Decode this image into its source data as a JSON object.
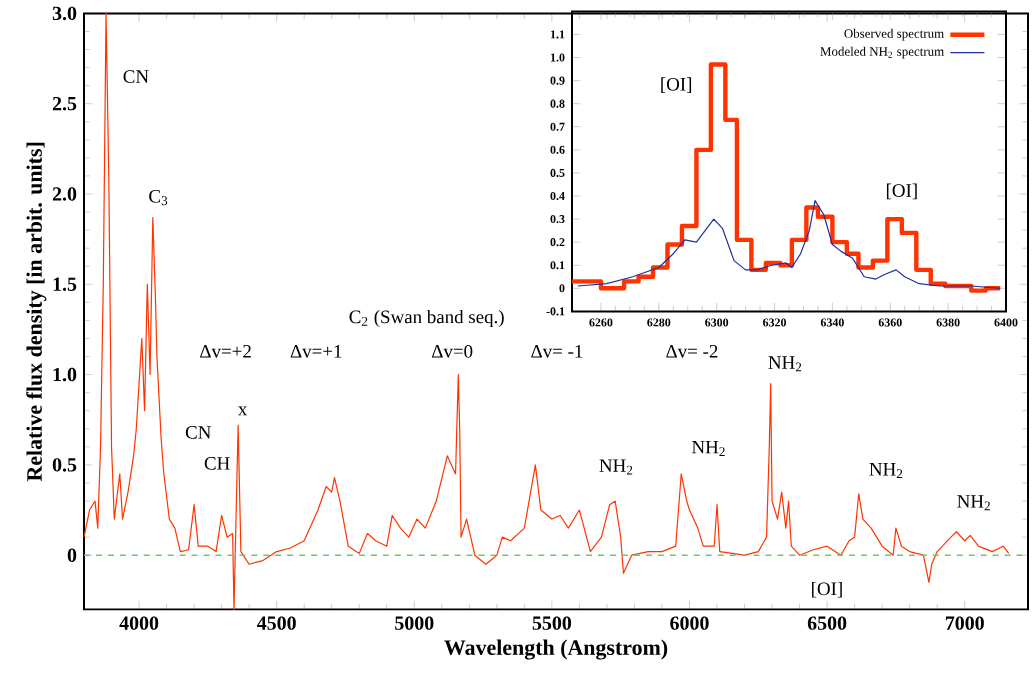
{
  "chart_data": [
    {
      "type": "line",
      "xlabel": "Wavelength (Angstrom)",
      "ylabel": "Relative flux density [in arbit. units]",
      "marker": "none",
      "x": [
        3800,
        3820,
        3840,
        3850,
        3860,
        3870,
        3880,
        3890,
        3900,
        3910,
        3930,
        3940,
        3960,
        3980,
        3990,
        4010,
        4020,
        4030,
        4040,
        4050,
        4060,
        4065,
        4080,
        4090,
        4110,
        4130,
        4150,
        4180,
        4200,
        4215,
        4250,
        4280,
        4300,
        4320,
        4340,
        4345,
        4350,
        4360,
        4370,
        4400,
        4450,
        4500,
        4550,
        4600,
        4650,
        4680,
        4700,
        4710,
        4730,
        4760,
        4800,
        4830,
        4860,
        4900,
        4920,
        4950,
        4980,
        5010,
        5040,
        5080,
        5120,
        5150,
        5160,
        5165,
        5170,
        5190,
        5220,
        5260,
        5300,
        5320,
        5350,
        5400,
        5440,
        5460,
        5500,
        5530,
        5560,
        5600,
        5640,
        5680,
        5710,
        5730,
        5750,
        5760,
        5790,
        5850,
        5900,
        5950,
        5970,
        5990,
        6000,
        6030,
        6050,
        6090,
        6100,
        6110,
        6200,
        6250,
        6280,
        6290,
        6295,
        6300,
        6320,
        6335,
        6350,
        6360,
        6370,
        6400,
        6450,
        6500,
        6550,
        6580,
        6600,
        6615,
        6630,
        6660,
        6700,
        6740,
        6750,
        6770,
        6800,
        6850,
        6870,
        6880,
        6900,
        6950,
        6970,
        7000,
        7020,
        7050,
        7100,
        7140,
        7160
      ],
      "series": [
        {
          "color": "#ff3300",
          "values": [
            0.1,
            0.25,
            0.3,
            0.15,
            0.6,
            1.5,
            3.0,
            2.1,
            0.6,
            0.2,
            0.45,
            0.2,
            0.35,
            0.55,
            0.7,
            1.2,
            0.8,
            1.5,
            1.0,
            1.87,
            1.4,
            1.1,
            0.65,
            0.45,
            0.2,
            0.15,
            0.02,
            0.03,
            0.28,
            0.05,
            0.05,
            0.02,
            0.22,
            0.1,
            0.12,
            -0.3,
            0.05,
            0.72,
            0.02,
            -0.05,
            -0.03,
            0.02,
            0.04,
            0.08,
            0.25,
            0.38,
            0.35,
            0.43,
            0.3,
            0.05,
            0.01,
            0.12,
            0.08,
            0.05,
            0.22,
            0.15,
            0.1,
            0.2,
            0.15,
            0.3,
            0.55,
            0.45,
            1.0,
            0.7,
            0.1,
            0.2,
            0.0,
            -0.05,
            0.0,
            0.1,
            0.08,
            0.15,
            0.5,
            0.25,
            0.2,
            0.22,
            0.15,
            0.25,
            0.02,
            0.1,
            0.28,
            0.3,
            0.1,
            -0.1,
            0.0,
            0.02,
            0.02,
            0.05,
            0.45,
            0.3,
            0.25,
            0.15,
            0.05,
            0.05,
            0.28,
            0.02,
            0.0,
            0.02,
            0.1,
            0.6,
            0.95,
            0.3,
            0.2,
            0.35,
            0.15,
            0.3,
            0.05,
            0.0,
            0.03,
            0.05,
            0.0,
            0.08,
            0.1,
            0.34,
            0.2,
            0.15,
            0.05,
            0.0,
            0.15,
            0.05,
            0.02,
            0.0,
            -0.15,
            -0.05,
            0.02,
            0.1,
            0.13,
            0.08,
            0.11,
            0.05,
            0.02,
            0.05,
            0.01
          ]
        }
      ],
      "xlim": [
        3800,
        7230
      ],
      "ylim": [
        -0.3,
        3.0
      ],
      "xticks": [
        4000,
        4500,
        5000,
        5500,
        6000,
        6500,
        7000
      ],
      "yticks": [
        0,
        0.5,
        {
          "value": 1,
          "label": "1.0"
        },
        1.5,
        {
          "value": 2,
          "label": "2.0"
        },
        2.5,
        {
          "value": 3,
          "label": "3.0"
        }
      ],
      "ref_lines": [
        {
          "axis": "y",
          "value": 0,
          "color": "#66cc66",
          "line_style": "dashed"
        }
      ],
      "annotations": [
        "CN",
        "C$_{3}$",
        "CN",
        "CH",
        "x",
        "C$_{2}$ (Swan band seq.)",
        "Δv=+2",
        "Δv=+1",
        "Δv=0",
        "Δv= -1",
        "Δv= -2",
        "NH$_{2}$",
        "NH$_{2}$",
        "NH$_{2}$",
        "NH$_{2}$",
        "NH$_{2}$",
        "[OI]"
      ]
    },
    {
      "type": "line",
      "legend": "top right",
      "marker": "none",
      "series": [
        {
          "name": "Observed spectrum",
          "type": "step",
          "color": "#ff3300",
          "x": [
            6250,
            6260,
            6268,
            6273,
            6278,
            6283,
            6288,
            6293,
            6298,
            6303,
            6307,
            6312,
            6317,
            6322,
            6326,
            6331,
            6335,
            6340,
            6345,
            6349,
            6354,
            6359,
            6364,
            6369,
            6374,
            6379,
            6388,
            6393,
            6398
          ],
          "values": [
            0.03,
            0.0,
            0.03,
            0.05,
            0.09,
            0.19,
            0.27,
            0.6,
            0.97,
            0.73,
            0.21,
            0.08,
            0.11,
            0.1,
            0.21,
            0.35,
            0.31,
            0.2,
            0.15,
            0.09,
            0.12,
            0.3,
            0.24,
            0.08,
            0.02,
            0.01,
            -0.01,
            0.0,
            0.0
          ]
        },
        {
          "name": "Modeled NH$_{2}$ spectrum",
          "type": "line",
          "color": "#1f2fa0",
          "x": [
            6252,
            6262,
            6271,
            6280,
            6285,
            6289,
            6293,
            6296,
            6299,
            6302,
            6306,
            6310,
            6314,
            6319,
            6324,
            6326,
            6329,
            6332,
            6334,
            6337,
            6340,
            6343,
            6347,
            6351,
            6355,
            6358,
            6362,
            6365,
            6370,
            6377,
            6388,
            6398
          ],
          "values": [
            0.01,
            0.02,
            0.05,
            0.09,
            0.15,
            0.21,
            0.2,
            0.25,
            0.3,
            0.26,
            0.12,
            0.08,
            0.08,
            0.1,
            0.11,
            0.09,
            0.15,
            0.25,
            0.38,
            0.32,
            0.19,
            0.16,
            0.13,
            0.05,
            0.04,
            0.06,
            0.08,
            0.05,
            0.02,
            0.01,
            0.01,
            0.0
          ]
        }
      ],
      "xlim": [
        6250,
        6400
      ],
      "ylim": [
        -0.1,
        1.2
      ],
      "xticks": [
        6260,
        6280,
        6300,
        6320,
        6340,
        6360,
        6380,
        6400
      ],
      "yticks": [
        -0.1,
        0,
        0.1,
        0.2,
        0.3,
        0.4,
        0.5,
        0.6,
        0.7,
        0.8,
        0.9,
        {
          "value": 1,
          "label": "1.0"
        },
        1.1
      ],
      "annotations": [
        "[OI]",
        "[OI]"
      ]
    }
  ]
}
